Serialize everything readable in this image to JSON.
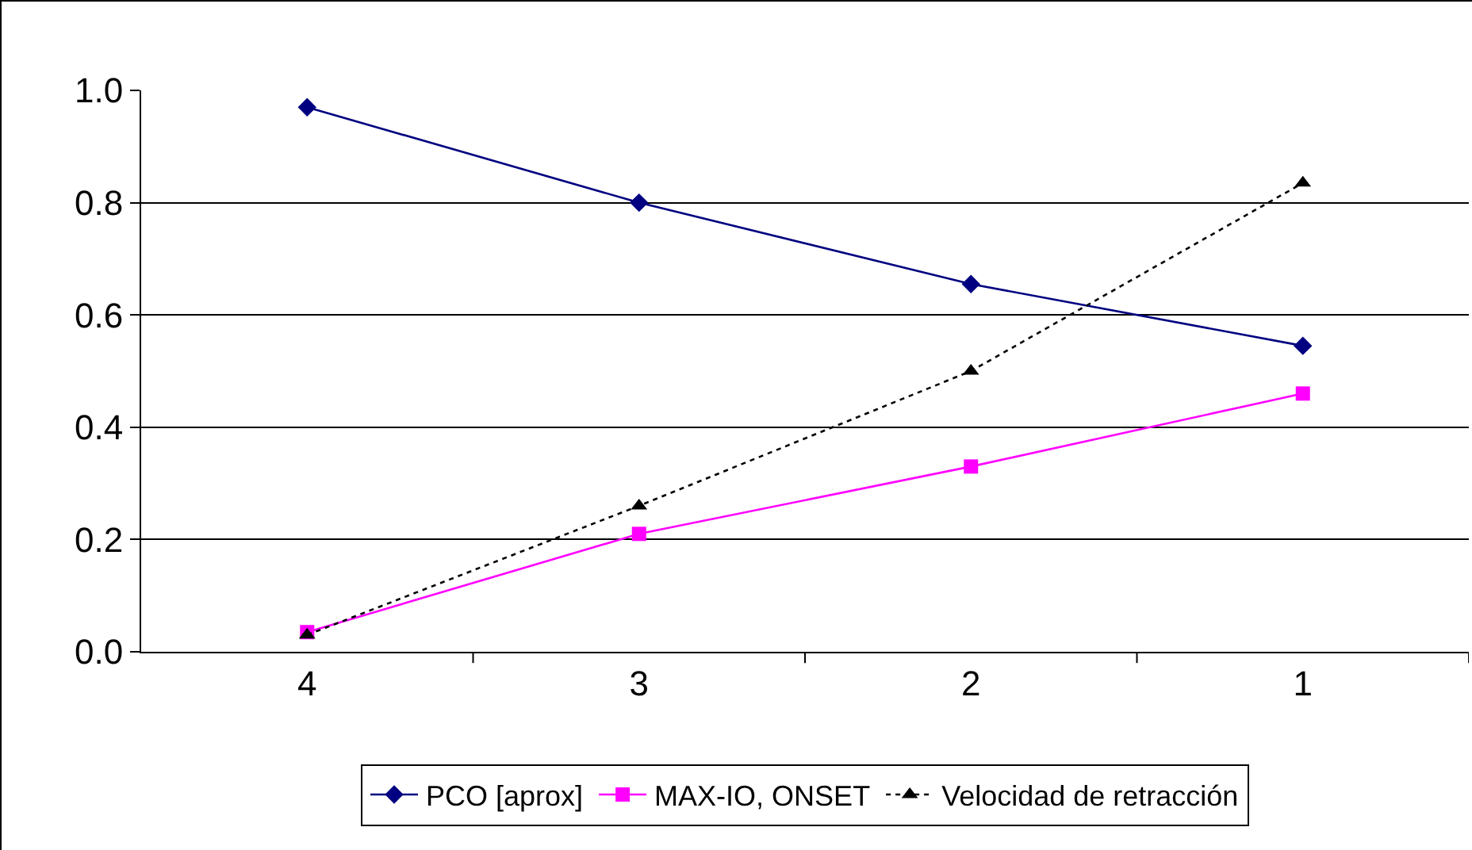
{
  "chart_data": {
    "type": "line",
    "categories": [
      "4",
      "3",
      "2",
      "1"
    ],
    "series": [
      {
        "name": "PCO [aprox]",
        "color": "#000080",
        "values": [
          0.97,
          0.8,
          0.655,
          0.545
        ],
        "marker": "diamond",
        "line_style": "solid"
      },
      {
        "name": "MAX-IO, ONSET",
        "color": "#ff00ff",
        "values": [
          0.035,
          0.21,
          0.33,
          0.46
        ],
        "marker": "square",
        "line_style": "solid"
      },
      {
        "name": "Velocidad de retracción",
        "color": "#000000",
        "values": [
          0.03,
          0.26,
          0.5,
          0.835
        ],
        "marker": "triangle",
        "line_style": "dotted"
      }
    ],
    "ylim": [
      0,
      1
    ],
    "yticks": [
      {
        "value": 0,
        "label": "0.0"
      },
      {
        "value": 0.2,
        "label": "0.2"
      },
      {
        "value": 0.4,
        "label": "0.4"
      },
      {
        "value": 0.6,
        "label": "0.6"
      },
      {
        "value": 0.8,
        "label": "0.8"
      },
      {
        "value": 1,
        "label": "1.0"
      }
    ],
    "grid": "y",
    "legend": "bottom"
  }
}
